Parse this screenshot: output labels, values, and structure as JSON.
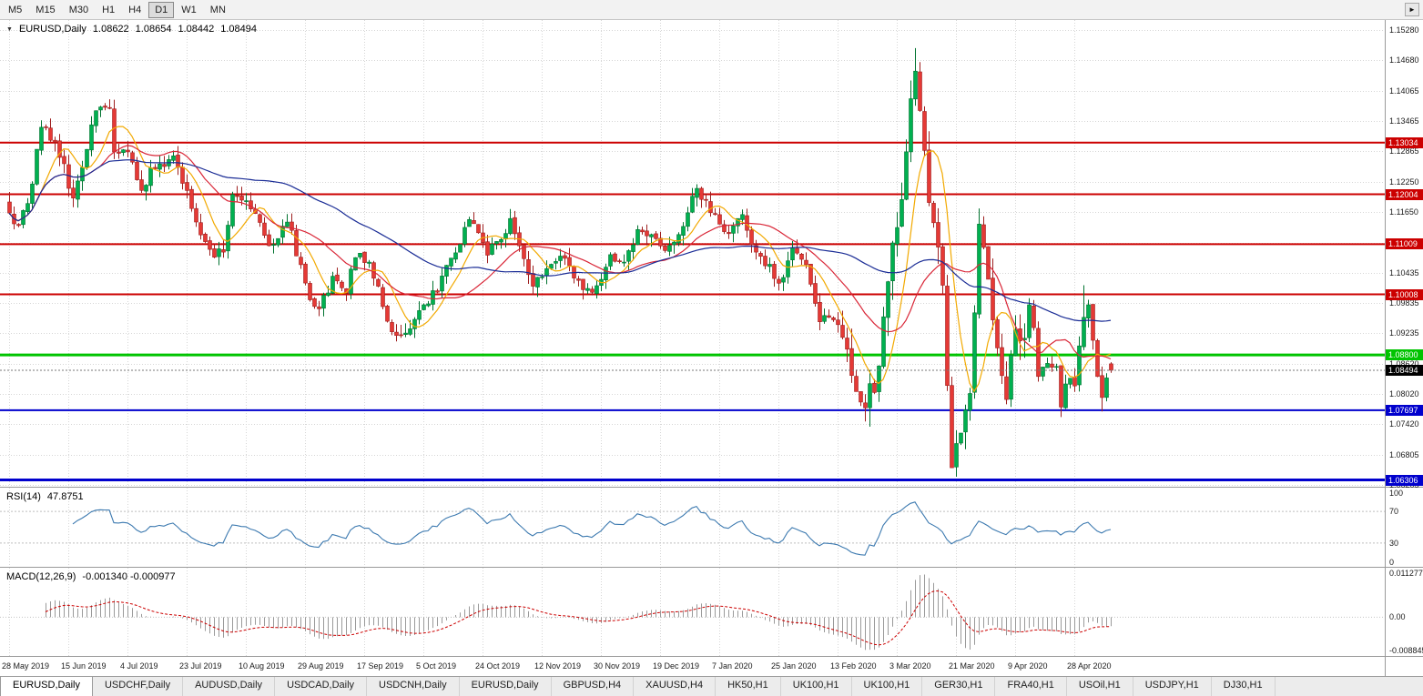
{
  "toolbar": {
    "timeframes": [
      {
        "label": "M5",
        "active": false
      },
      {
        "label": "M15",
        "active": false
      },
      {
        "label": "M30",
        "active": false
      },
      {
        "label": "H1",
        "active": false
      },
      {
        "label": "H4",
        "active": false
      },
      {
        "label": "D1",
        "active": true
      },
      {
        "label": "W1",
        "active": false
      },
      {
        "label": "MN",
        "active": false
      }
    ]
  },
  "chart": {
    "symbol": "EURUSD,Daily",
    "open": "1.08622",
    "high": "1.08654",
    "low": "1.08442",
    "close": "1.08494"
  },
  "price_axis": {
    "ticks": [
      1.1528,
      1.1468,
      1.14065,
      1.13465,
      1.12865,
      1.1225,
      1.1165,
      1.11035,
      1.10435,
      1.09835,
      1.09235,
      1.0862,
      1.0802,
      1.0742,
      1.06805,
      1.06205
    ]
  },
  "levels": [
    {
      "t": "1.13034",
      "v": 1.13034,
      "c": "#cc0000",
      "w": 2
    },
    {
      "t": "1.12004",
      "v": 1.12004,
      "c": "#cc0000",
      "w": 2
    },
    {
      "t": "1.11009",
      "v": 1.11009,
      "c": "#cc0000",
      "w": 2
    },
    {
      "t": "1.10008",
      "v": 1.10008,
      "c": "#cc0000",
      "w": 2
    },
    {
      "t": "1.08800",
      "v": 1.088,
      "c": "#00c400",
      "w": 3
    },
    {
      "t": "1.07697",
      "v": 1.07697,
      "c": "#0000cd",
      "w": 2
    },
    {
      "t": "1.06306",
      "v": 1.06306,
      "c": "#0000cd",
      "w": 3
    }
  ],
  "current_price": {
    "t": "1.08494",
    "v": 1.08494
  },
  "rsi": {
    "name": "RSI(14)",
    "value": "47.8751",
    "color": "#3d7ab0",
    "levels": [
      70,
      30
    ],
    "ticks": [
      {
        "t": "100",
        "v": 100
      },
      {
        "t": "70",
        "v": 70
      },
      {
        "t": "30",
        "v": 30
      },
      {
        "t": "0",
        "v": 0
      }
    ]
  },
  "macd": {
    "name": "MACD(12,26,9)",
    "values": "-0.001340 -0.000977",
    "hist_color": "#9a9a9a",
    "signal_color": "#cc0000",
    "range": {
      "max": 0.011277,
      "min": -0.008845
    },
    "ticks": [
      {
        "t": "0.011277",
        "v": 0.011277
      },
      {
        "t": "0.00",
        "v": 0
      },
      {
        "t": "-0.008845",
        "v": -0.008845
      }
    ]
  },
  "tabs": [
    {
      "label": "EURUSD,Daily",
      "active": true
    },
    {
      "label": "USDCHF,Daily",
      "active": false
    },
    {
      "label": "AUDUSD,Daily",
      "active": false
    },
    {
      "label": "USDCAD,Daily",
      "active": false
    },
    {
      "label": "USDCNH,Daily",
      "active": false
    },
    {
      "label": "EURUSD,Daily",
      "active": false
    },
    {
      "label": "GBPUSD,H4",
      "active": false
    },
    {
      "label": "XAUUSD,H4",
      "active": false
    },
    {
      "label": "HK50,H1",
      "active": false
    },
    {
      "label": "UK100,H1",
      "active": false
    },
    {
      "label": "UK100,H1",
      "active": false
    },
    {
      "label": "GER30,H1",
      "active": false
    },
    {
      "label": "FRA40,H1",
      "active": false
    },
    {
      "label": "USOil,H1",
      "active": false
    },
    {
      "label": "USDJPY,H1",
      "active": false
    },
    {
      "label": "DJ30,H1",
      "active": false
    }
  ],
  "colors": {
    "up": "#00b050",
    "up_border": "#00722f",
    "down": "#e53935",
    "down_border": "#9e1f1f",
    "grid": "#d6d6d6"
  },
  "chart_data": {
    "type": "candlestick",
    "symbol": "EURUSD",
    "timeframe": "Daily",
    "bars": 243,
    "axis_range": {
      "top": 1.1548,
      "bottom": 1.0617
    },
    "moving_averages": [
      {
        "period": 8,
        "color": "#f2a900"
      },
      {
        "period": 21,
        "color": "#d92637"
      },
      {
        "period": 55,
        "color": "#1b2d96"
      }
    ],
    "waypoints": [
      [
        0,
        1.1163
      ],
      [
        2,
        1.1138
      ],
      [
        4,
        1.1182
      ],
      [
        7,
        1.1334
      ],
      [
        10,
        1.1305
      ],
      [
        14,
        1.1193
      ],
      [
        17,
        1.129
      ],
      [
        19,
        1.1367
      ],
      [
        22,
        1.1373
      ],
      [
        23,
        1.1285
      ],
      [
        26,
        1.1285
      ],
      [
        29,
        1.1208
      ],
      [
        31,
        1.1253
      ],
      [
        36,
        1.1277
      ],
      [
        39,
        1.1208
      ],
      [
        41,
        1.1145
      ],
      [
        45,
        1.1075
      ],
      [
        47,
        1.1085
      ],
      [
        49,
        1.12
      ],
      [
        53,
        1.1171
      ],
      [
        57,
        1.1098
      ],
      [
        61,
        1.1145
      ],
      [
        64,
        1.106
      ],
      [
        66,
        1.099
      ],
      [
        68,
        1.0972
      ],
      [
        71,
        1.1037
      ],
      [
        74,
        1.1003
      ],
      [
        76,
        1.1074
      ],
      [
        79,
        1.1065
      ],
      [
        81,
        1.1017
      ],
      [
        84,
        1.0926
      ],
      [
        88,
        1.0932
      ],
      [
        91,
        1.098
      ],
      [
        94,
        1.1005
      ],
      [
        97,
        1.1073
      ],
      [
        101,
        1.115
      ],
      [
        105,
        1.1079
      ],
      [
        108,
        1.111
      ],
      [
        110,
        1.1152
      ],
      [
        113,
        1.1072
      ],
      [
        115,
        1.1017
      ],
      [
        118,
        1.1052
      ],
      [
        121,
        1.1077
      ],
      [
        123,
        1.1058
      ],
      [
        126,
        1.101
      ],
      [
        129,
        1.1018
      ],
      [
        132,
        1.108
      ],
      [
        135,
        1.1065
      ],
      [
        138,
        1.113
      ],
      [
        141,
        1.112
      ],
      [
        144,
        1.1088
      ],
      [
        147,
        1.112
      ],
      [
        151,
        1.1212
      ],
      [
        155,
        1.116
      ],
      [
        158,
        1.1122
      ],
      [
        161,
        1.116
      ],
      [
        164,
        1.1085
      ],
      [
        169,
        1.1023
      ],
      [
        172,
        1.1093
      ],
      [
        175,
        1.106
      ],
      [
        178,
        1.0946
      ],
      [
        181,
        1.095
      ],
      [
        183,
        1.0915
      ],
      [
        187,
        1.0786
      ],
      [
        190,
        1.0805
      ],
      [
        193,
        1.1026
      ],
      [
        195,
        1.1134
      ],
      [
        197,
        1.1285
      ],
      [
        199,
        1.1446
      ],
      [
        202,
        1.1184
      ],
      [
        204,
        1.1095
      ],
      [
        205,
        1.1019
      ],
      [
        207,
        1.0655
      ],
      [
        209,
        1.0724
      ],
      [
        210,
        1.077
      ],
      [
        211,
        1.0803
      ],
      [
        213,
        1.1141
      ],
      [
        215,
        1.1031
      ],
      [
        216,
        1.095
      ],
      [
        219,
        1.0791
      ],
      [
        221,
        1.093
      ],
      [
        223,
        1.0913
      ],
      [
        224,
        1.098
      ],
      [
        226,
        1.0837
      ],
      [
        228,
        1.0863
      ],
      [
        230,
        1.0857
      ],
      [
        231,
        1.0776
      ],
      [
        232,
        1.0822
      ],
      [
        234,
        1.0818
      ],
      [
        236,
        1.0955
      ],
      [
        237,
        1.098
      ],
      [
        239,
        1.0837
      ],
      [
        240,
        1.0795
      ],
      [
        241,
        1.0834
      ],
      [
        242,
        1.08494
      ]
    ],
    "forced": {
      "7": {
        "h": 1.1348
      },
      "22": {
        "h": 1.139
      },
      "187": {
        "l": 1.0778
      },
      "199": {
        "h": 1.1492
      },
      "207": {
        "l": 1.0671
      },
      "208": {
        "l": 1.0637
      },
      "231": {
        "l": 1.0756
      },
      "236": {
        "h": 1.1019
      },
      "240": {
        "l": 1.0767
      },
      "242": {
        "o": 1.08622,
        "h": 1.08654,
        "l": 1.08442,
        "c": 1.08494
      }
    },
    "date_ticks": [
      {
        "bar": 0,
        "label": "28 May 2019"
      },
      {
        "bar": 13,
        "label": "15 Jun 2019"
      },
      {
        "bar": 26,
        "label": "4 Jul 2019"
      },
      {
        "bar": 39,
        "label": "23 Jul 2019"
      },
      {
        "bar": 52,
        "label": "10 Aug 2019"
      },
      {
        "bar": 65,
        "label": "29 Aug 2019"
      },
      {
        "bar": 78,
        "label": "17 Sep 2019"
      },
      {
        "bar": 91,
        "label": "5 Oct 2019"
      },
      {
        "bar": 104,
        "label": "24 Oct 2019"
      },
      {
        "bar": 117,
        "label": "12 Nov 2019"
      },
      {
        "bar": 130,
        "label": "30 Nov 2019"
      },
      {
        "bar": 143,
        "label": "19 Dec 2019"
      },
      {
        "bar": 156,
        "label": "7 Jan 2020"
      },
      {
        "bar": 169,
        "label": "25 Jan 2020"
      },
      {
        "bar": 182,
        "label": "13 Feb 2020"
      },
      {
        "bar": 195,
        "label": "3 Mar 2020"
      },
      {
        "bar": 208,
        "label": "21 Mar 2020"
      },
      {
        "bar": 221,
        "label": "9 Apr 2020"
      },
      {
        "bar": 234,
        "label": "28 Apr 2020"
      }
    ]
  }
}
